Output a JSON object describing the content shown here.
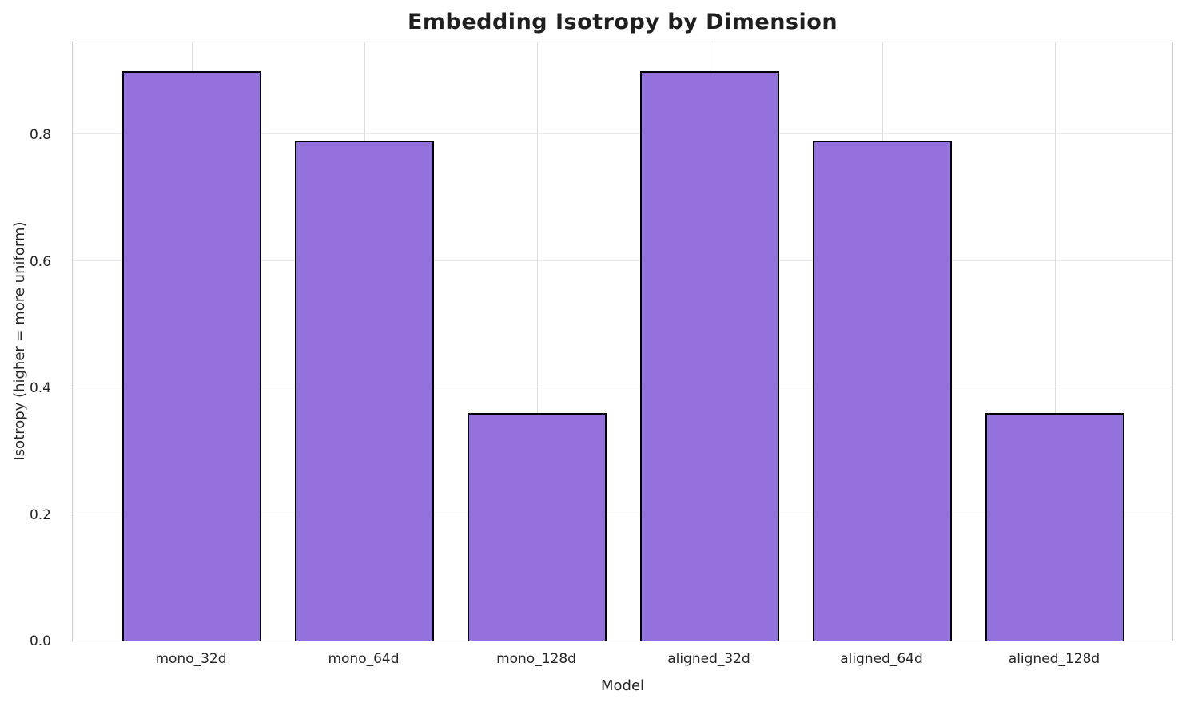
{
  "figure": {
    "title": "Embedding Isotropy by Dimension"
  },
  "chart_data": {
    "type": "bar",
    "title": "Embedding Isotropy by Dimension",
    "xlabel": "Model",
    "ylabel": "Isotropy (higher = more uniform)",
    "categories": [
      "mono_32d",
      "mono_64d",
      "mono_128d",
      "aligned_32d",
      "aligned_64d",
      "aligned_128d"
    ],
    "values": [
      0.9,
      0.79,
      0.36,
      0.9,
      0.79,
      0.36
    ],
    "yticks": [
      "0.0",
      "0.2",
      "0.4",
      "0.6",
      "0.8"
    ],
    "ylim": [
      0,
      0.948
    ],
    "grid": true,
    "legend": "none",
    "bar_color": "#9370DB",
    "bar_edge_color": "#000000",
    "grid_color": "#e9e9e9",
    "spine_color": "#cccccc"
  }
}
